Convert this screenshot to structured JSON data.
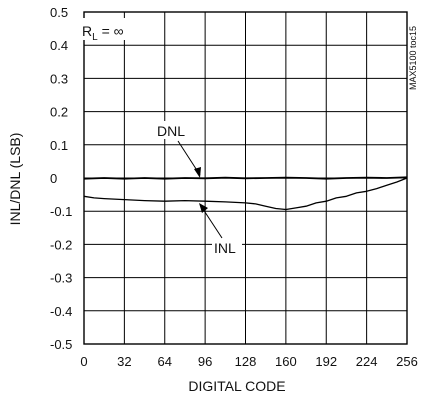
{
  "chart_data": {
    "type": "line",
    "title": "",
    "xlabel": "DIGITAL CODE",
    "ylabel": "INL/DNL (LSB)",
    "xlim": [
      0,
      256
    ],
    "ylim": [
      -0.5,
      0.5
    ],
    "xticks": [
      "0",
      "32",
      "64",
      "96",
      "128",
      "160",
      "192",
      "224",
      "256"
    ],
    "yticks": [
      "0.5",
      "0.4",
      "0.3",
      "0.2",
      "0.1",
      "0",
      "-0.1",
      "-0.2",
      "-0.3",
      "-0.4",
      "-0.5"
    ],
    "grid": true,
    "condition_label": "RL = ∞",
    "condition_main": "R",
    "condition_sub": "L",
    "condition_rest": " = ∞",
    "part_label": "MAX5100 toc15",
    "series": [
      {
        "name": "DNL",
        "x": [
          0,
          16,
          32,
          48,
          64,
          80,
          96,
          112,
          128,
          144,
          160,
          176,
          192,
          208,
          224,
          240,
          256
        ],
        "y": [
          -0.002,
          0.0,
          -0.002,
          0.0,
          -0.002,
          0.0,
          -0.001,
          0.001,
          -0.001,
          0.0,
          0.001,
          0.0,
          -0.002,
          0.0,
          0.001,
          0.0,
          0.002
        ]
      },
      {
        "name": "INL",
        "x": [
          0,
          8,
          16,
          32,
          48,
          64,
          80,
          96,
          112,
          128,
          136,
          144,
          152,
          160,
          168,
          176,
          184,
          192,
          200,
          208,
          216,
          224,
          232,
          240,
          248,
          256
        ],
        "y": [
          -0.055,
          -0.06,
          -0.062,
          -0.065,
          -0.068,
          -0.07,
          -0.068,
          -0.07,
          -0.072,
          -0.075,
          -0.078,
          -0.085,
          -0.092,
          -0.095,
          -0.09,
          -0.085,
          -0.075,
          -0.07,
          -0.06,
          -0.055,
          -0.045,
          -0.04,
          -0.032,
          -0.022,
          -0.012,
          0.0
        ]
      }
    ],
    "annotations": [
      {
        "text": "DNL",
        "target_series": "DNL",
        "target_x": 96
      },
      {
        "text": "INL",
        "target_series": "INL",
        "target_x": 96
      }
    ]
  }
}
